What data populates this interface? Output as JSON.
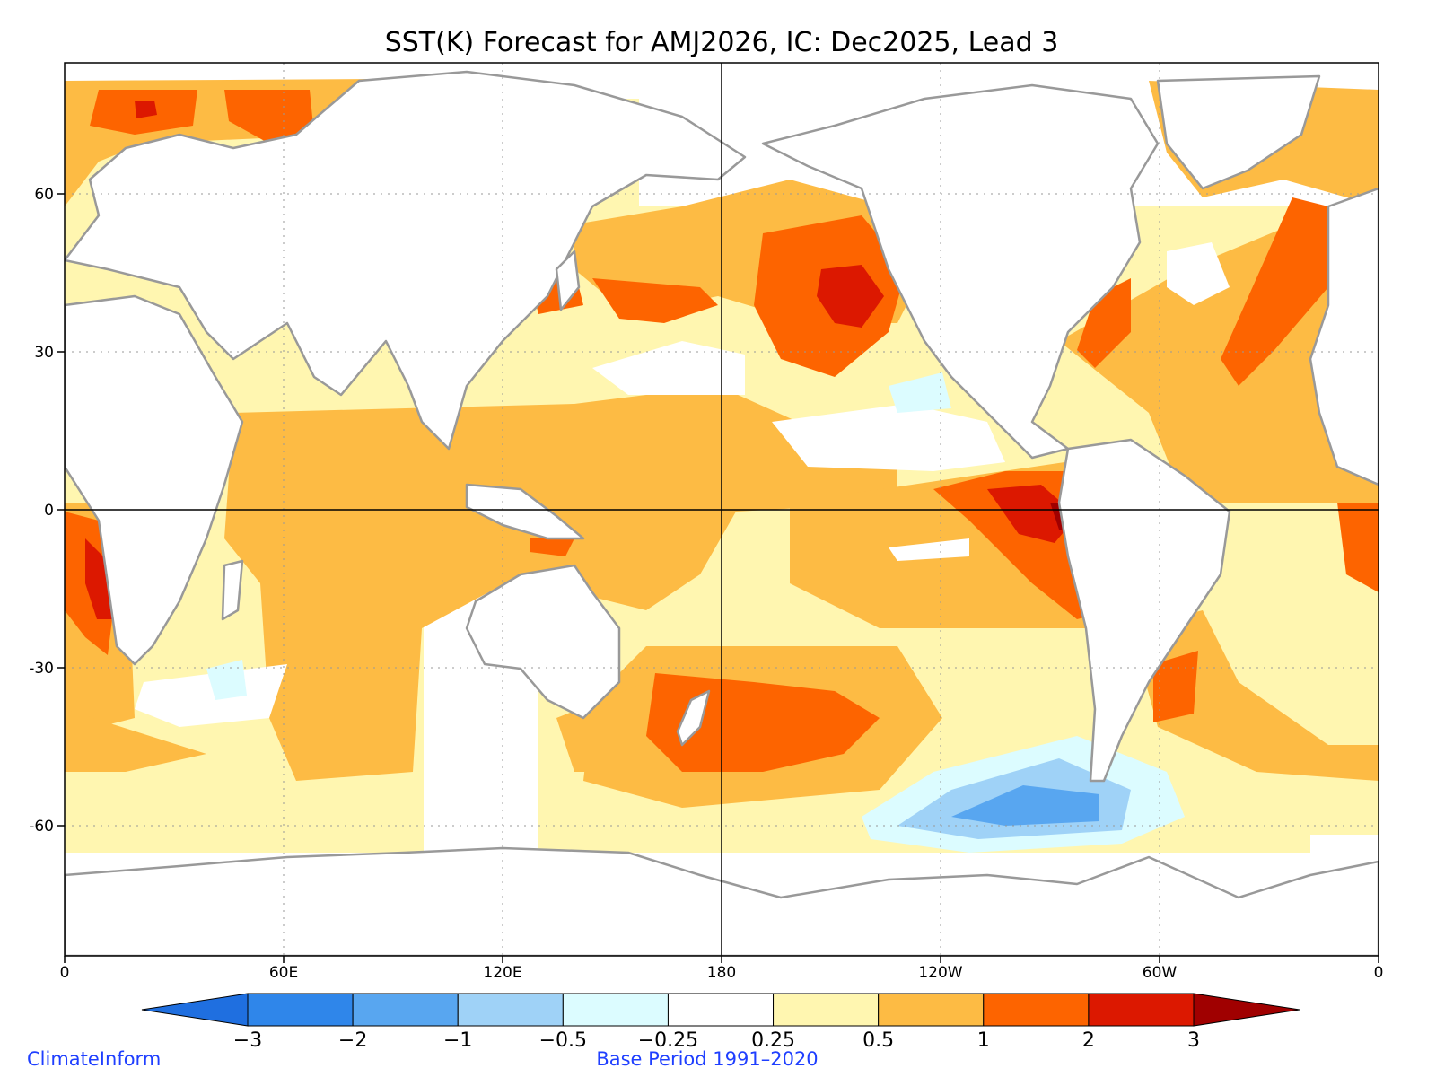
{
  "title": "SST(K) Forecast for AMJ2026, IC: Dec2025, Lead 3",
  "x_ticks": [
    "0",
    "60E",
    "120E",
    "180",
    "120W",
    "60W",
    "0"
  ],
  "y_ticks": [
    "60",
    "30",
    "0",
    "-30",
    "-60"
  ],
  "colorbar": {
    "labels": [
      "-3",
      "-2",
      "-1",
      "-0.5",
      "-0.25",
      "0.25",
      "0.5",
      "1",
      "2",
      "3"
    ],
    "colors": [
      "#1f6fe0",
      "#2f86ea",
      "#58a6f0",
      "#9fd2f7",
      "#dcfcff",
      "#ffffff",
      "#fff6b0",
      "#fdbb44",
      "#fd6400",
      "#dc1800",
      "#a00000"
    ]
  },
  "footer": {
    "left": "ClimateInform",
    "center": "Base Period 1991–2020"
  },
  "colors": {
    "land": "#ffffff",
    "coast": "#999999",
    "frame": "#000000",
    "footer_text": "#1f3fff"
  }
}
